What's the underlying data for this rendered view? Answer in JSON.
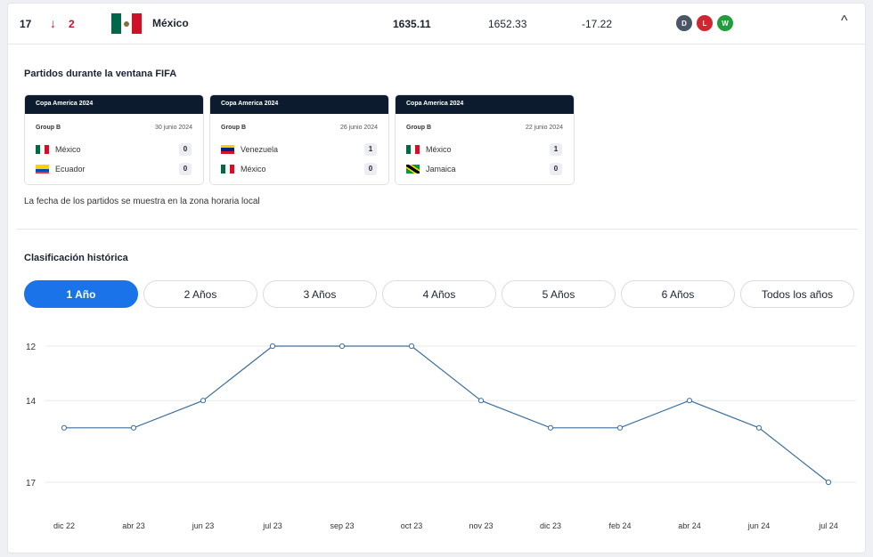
{
  "row": {
    "rank": "17",
    "change_icon": "arrow-down-icon",
    "change": "2",
    "team": "México",
    "points": "1635.11",
    "previous_points": "1652.33",
    "difference": "-17.22",
    "results": [
      {
        "label": "D",
        "color": "#4a5568"
      },
      {
        "label": "L",
        "color": "#d0262f"
      },
      {
        "label": "W",
        "color": "#1f9d3a"
      }
    ]
  },
  "matches_section": {
    "title": "Partidos durante la ventana FIFA",
    "matches": [
      {
        "competition": "Copa America 2024",
        "group": "Group B",
        "date": "30 junio 2024",
        "home": "México",
        "home_score": "0",
        "away": "Ecuador",
        "away_score": "0"
      },
      {
        "competition": "Copa America 2024",
        "group": "Group B",
        "date": "26 junio 2024",
        "home": "Venezuela",
        "home_score": "1",
        "away": "México",
        "away_score": "0"
      },
      {
        "competition": "Copa America 2024",
        "group": "Group B",
        "date": "22 junio 2024",
        "home": "México",
        "home_score": "1",
        "away": "Jamaica",
        "away_score": "0"
      }
    ],
    "note": "La fecha de los partidos se muestra en la zona horaria local"
  },
  "history": {
    "title": "Clasificación histórica",
    "tabs": [
      "1 Año",
      "2 Años",
      "3 Años",
      "4 Años",
      "5 Años",
      "6 Años",
      "Todos los años"
    ],
    "active_tab": "1 Año"
  },
  "colors": {
    "accent": "#1a73e8",
    "line": "#3d6f9e",
    "header": "#0d1b2e"
  },
  "chart_data": {
    "type": "line",
    "categories": [
      "dic 22",
      "abr 23",
      "jun 23",
      "jul 23",
      "sep 23",
      "oct 23",
      "nov 23",
      "dic 23",
      "feb 24",
      "abr 24",
      "jun 24",
      "jul 24"
    ],
    "series": [
      {
        "values": [
          15,
          15,
          14,
          12,
          12,
          12,
          14,
          15,
          15,
          14,
          15,
          17
        ]
      }
    ],
    "y_ticks": [
      12,
      14,
      17
    ],
    "ylim": [
      12,
      17
    ],
    "y_inverted": true,
    "grid": true
  }
}
